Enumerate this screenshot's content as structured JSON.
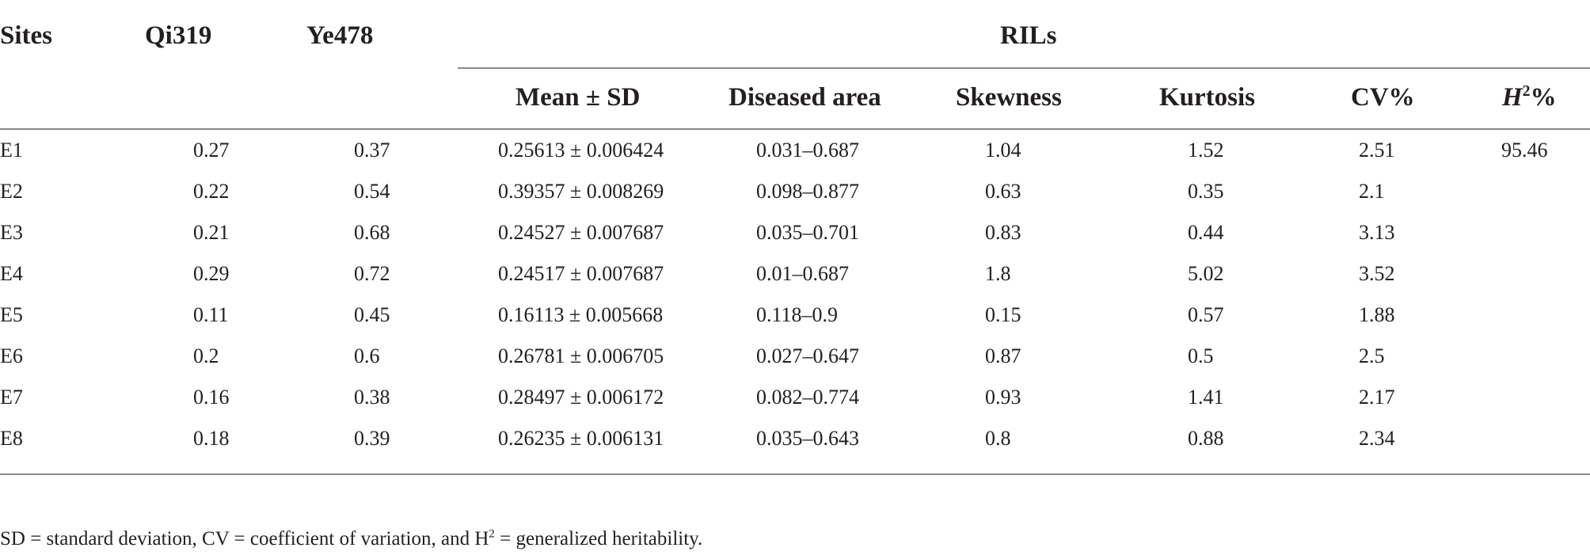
{
  "table": {
    "headers": {
      "sites": "Sites",
      "qi319": "Qi319",
      "ye478": "Ye478",
      "rils": "RILs",
      "mean_sd": "Mean ± SD",
      "diseased_area": "Diseased area",
      "skewness": "Skewness",
      "kurtosis": "Kurtosis",
      "cv": "CV%",
      "h2_base": "H",
      "h2_sup": "2",
      "h2_suffix": "%"
    },
    "rows": [
      {
        "site": "E1",
        "qi319": "0.27",
        "ye478": "0.37",
        "mean_sd": "0.25613 ± 0.006424",
        "diseased_area": "0.031–0.687",
        "skewness": "1.04",
        "kurtosis": "1.52",
        "cv": "2.51",
        "h2": "95.46"
      },
      {
        "site": "E2",
        "qi319": "0.22",
        "ye478": "0.54",
        "mean_sd": "0.39357 ± 0.008269",
        "diseased_area": "0.098–0.877",
        "skewness": "0.63",
        "kurtosis": "0.35",
        "cv": "2.1",
        "h2": ""
      },
      {
        "site": "E3",
        "qi319": "0.21",
        "ye478": "0.68",
        "mean_sd": "0.24527 ± 0.007687",
        "diseased_area": "0.035–0.701",
        "skewness": "0.83",
        "kurtosis": "0.44",
        "cv": "3.13",
        "h2": ""
      },
      {
        "site": "E4",
        "qi319": "0.29",
        "ye478": "0.72",
        "mean_sd": "0.24517 ± 0.007687",
        "diseased_area": "0.01–0.687",
        "skewness": "1.8",
        "kurtosis": "5.02",
        "cv": "3.52",
        "h2": ""
      },
      {
        "site": "E5",
        "qi319": "0.11",
        "ye478": "0.45",
        "mean_sd": "0.16113 ± 0.005668",
        "diseased_area": "0.118–0.9",
        "skewness": "0.15",
        "kurtosis": "0.57",
        "cv": "1.88",
        "h2": ""
      },
      {
        "site": "E6",
        "qi319": "0.2",
        "ye478": "0.6",
        "mean_sd": "0.26781 ± 0.006705",
        "diseased_area": "0.027–0.647",
        "skewness": "0.87",
        "kurtosis": "0.5",
        "cv": "2.5",
        "h2": ""
      },
      {
        "site": "E7",
        "qi319": "0.16",
        "ye478": "0.38",
        "mean_sd": "0.28497 ± 0.006172",
        "diseased_area": "0.082–0.774",
        "skewness": "0.93",
        "kurtosis": "1.41",
        "cv": "2.17",
        "h2": ""
      },
      {
        "site": "E8",
        "qi319": "0.18",
        "ye478": "0.39",
        "mean_sd": "0.26235 ± 0.006131",
        "diseased_area": "0.035–0.643",
        "skewness": "0.8",
        "kurtosis": "0.88",
        "cv": "2.34",
        "h2": ""
      }
    ]
  },
  "footnote": {
    "text_before_sup": "SD = standard deviation, CV = coefficient of variation, and H",
    "sup": "2",
    "text_after_sup": " = generalized heritability."
  }
}
